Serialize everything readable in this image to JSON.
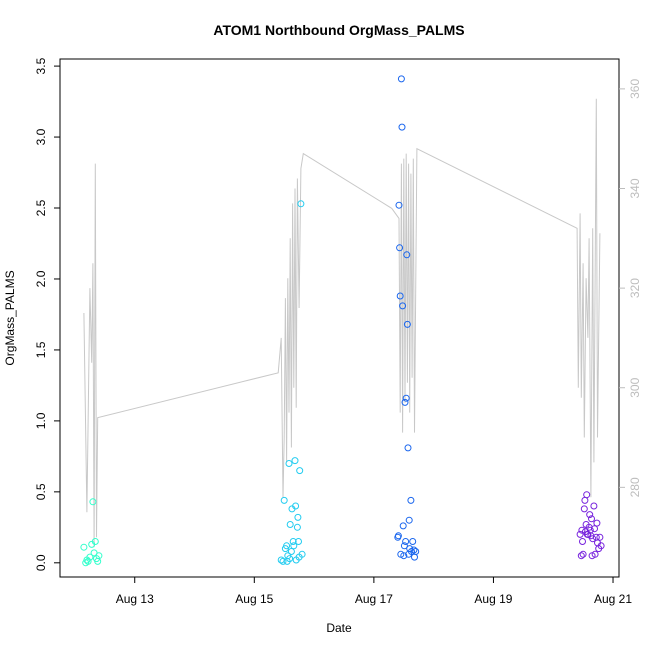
{
  "chart_data": {
    "type": "scatter",
    "title": "ATOM1 Northbound OrgMass_PALMS",
    "xlabel": "Date",
    "ylabel": "OrgMass_PALMS",
    "x_ticks": [
      "Aug 13",
      "Aug 15",
      "Aug 17",
      "Aug 19",
      "Aug 21"
    ],
    "x_tick_days": [
      13,
      15,
      17,
      19,
      21
    ],
    "xlim_days": [
      11.75,
      21.1
    ],
    "ylim": [
      -0.1,
      3.55
    ],
    "y_ticks": [
      "0.0",
      "0.5",
      "1.0",
      "1.5",
      "2.0",
      "2.5",
      "3.0",
      "3.5"
    ],
    "y_tick_values": [
      0,
      0.5,
      1.0,
      1.5,
      2.0,
      2.5,
      3.0,
      3.5
    ],
    "y2lim": [
      262,
      366
    ],
    "y2_ticks": [
      "280",
      "300",
      "320",
      "340",
      "360"
    ],
    "y2_tick_values": [
      280,
      300,
      320,
      340,
      360
    ],
    "grid": false,
    "legend": "none",
    "line_color": "#c8c8c8",
    "series": [
      {
        "color": "#33ffcc",
        "points": [
          [
            12.15,
            0.11
          ],
          [
            12.2,
            0.02
          ],
          [
            12.22,
            0.01
          ],
          [
            12.25,
            0.04
          ],
          [
            12.28,
            0.13
          ],
          [
            12.3,
            0.43
          ],
          [
            12.32,
            0.07
          ],
          [
            12.34,
            0.15
          ],
          [
            12.36,
            0.03
          ],
          [
            12.38,
            0.01
          ],
          [
            12.4,
            0.05
          ],
          [
            12.18,
            0.0
          ]
        ]
      },
      {
        "color": "#22ccf0",
        "points": [
          [
            15.45,
            0.02
          ],
          [
            15.48,
            0.01
          ],
          [
            15.5,
            0.44
          ],
          [
            15.52,
            0.1
          ],
          [
            15.54,
            0.12
          ],
          [
            15.56,
            0.05
          ],
          [
            15.58,
            0.7
          ],
          [
            15.6,
            0.27
          ],
          [
            15.62,
            0.08
          ],
          [
            15.63,
            0.38
          ],
          [
            15.65,
            0.15
          ],
          [
            15.66,
            0.12
          ],
          [
            15.68,
            0.72
          ],
          [
            15.69,
            0.4
          ],
          [
            15.7,
            0.02
          ],
          [
            15.72,
            0.25
          ],
          [
            15.73,
            0.32
          ],
          [
            15.74,
            0.15
          ],
          [
            15.75,
            0.04
          ],
          [
            15.76,
            0.65
          ],
          [
            15.78,
            2.53
          ],
          [
            15.8,
            0.06
          ],
          [
            15.55,
            0.01
          ],
          [
            15.59,
            0.03
          ]
        ]
      },
      {
        "color": "#1a66ee",
        "points": [
          [
            17.4,
            0.18
          ],
          [
            17.42,
            2.52
          ],
          [
            17.43,
            2.22
          ],
          [
            17.44,
            1.88
          ],
          [
            17.45,
            0.06
          ],
          [
            17.46,
            3.41
          ],
          [
            17.47,
            3.07
          ],
          [
            17.48,
            1.81
          ],
          [
            17.49,
            0.26
          ],
          [
            17.5,
            0.05
          ],
          [
            17.52,
            1.13
          ],
          [
            17.53,
            0.15
          ],
          [
            17.54,
            1.16
          ],
          [
            17.55,
            2.17
          ],
          [
            17.56,
            1.68
          ],
          [
            17.57,
            0.81
          ],
          [
            17.58,
            0.06
          ],
          [
            17.59,
            0.3
          ],
          [
            17.6,
            0.1
          ],
          [
            17.62,
            0.44
          ],
          [
            17.63,
            0.08
          ],
          [
            17.65,
            0.15
          ],
          [
            17.67,
            0.09
          ],
          [
            17.68,
            0.04
          ],
          [
            17.7,
            0.08
          ],
          [
            17.41,
            0.19
          ],
          [
            17.51,
            0.12
          ]
        ]
      },
      {
        "color": "#7722dd",
        "points": [
          [
            20.45,
            0.2
          ],
          [
            20.47,
            0.05
          ],
          [
            20.48,
            0.23
          ],
          [
            20.5,
            0.06
          ],
          [
            20.52,
            0.38
          ],
          [
            20.53,
            0.44
          ],
          [
            20.54,
            0.22
          ],
          [
            20.55,
            0.27
          ],
          [
            20.56,
            0.48
          ],
          [
            20.58,
            0.2
          ],
          [
            20.6,
            0.25
          ],
          [
            20.61,
            0.34
          ],
          [
            20.62,
            0.23
          ],
          [
            20.64,
            0.31
          ],
          [
            20.65,
            0.05
          ],
          [
            20.66,
            0.17
          ],
          [
            20.68,
            0.4
          ],
          [
            20.7,
            0.06
          ],
          [
            20.72,
            0.18
          ],
          [
            20.73,
            0.28
          ],
          [
            20.74,
            0.14
          ],
          [
            20.76,
            0.1
          ],
          [
            20.78,
            0.18
          ],
          [
            20.8,
            0.12
          ],
          [
            20.49,
            0.15
          ],
          [
            20.57,
            0.2
          ],
          [
            20.63,
            0.19
          ],
          [
            20.69,
            0.24
          ]
        ]
      }
    ],
    "line_series": {
      "axis": "right",
      "points": [
        [
          12.15,
          315
        ],
        [
          12.2,
          275
        ],
        [
          12.25,
          320
        ],
        [
          12.28,
          305
        ],
        [
          12.3,
          325
        ],
        [
          12.32,
          268
        ],
        [
          12.34,
          345
        ],
        [
          12.36,
          270
        ],
        [
          12.38,
          294
        ],
        [
          15.4,
          303
        ],
        [
          15.45,
          310
        ],
        [
          15.48,
          278
        ],
        [
          15.5,
          290
        ],
        [
          15.52,
          318
        ],
        [
          15.54,
          285
        ],
        [
          15.56,
          322
        ],
        [
          15.58,
          295
        ],
        [
          15.6,
          330
        ],
        [
          15.62,
          288
        ],
        [
          15.64,
          337
        ],
        [
          15.66,
          300
        ],
        [
          15.68,
          340
        ],
        [
          15.7,
          296
        ],
        [
          15.72,
          342
        ],
        [
          15.75,
          316
        ],
        [
          15.78,
          344
        ],
        [
          15.82,
          347
        ],
        [
          17.3,
          336
        ],
        [
          17.42,
          334
        ],
        [
          17.44,
          295
        ],
        [
          17.46,
          345
        ],
        [
          17.48,
          291
        ],
        [
          17.5,
          346
        ],
        [
          17.52,
          297
        ],
        [
          17.54,
          347
        ],
        [
          17.56,
          301
        ],
        [
          17.58,
          345
        ],
        [
          17.6,
          295
        ],
        [
          17.62,
          343
        ],
        [
          17.64,
          302
        ],
        [
          17.66,
          346
        ],
        [
          17.68,
          291
        ],
        [
          17.72,
          348
        ],
        [
          20.4,
          332
        ],
        [
          20.42,
          300
        ],
        [
          20.45,
          335
        ],
        [
          20.47,
          298
        ],
        [
          20.5,
          325
        ],
        [
          20.52,
          290
        ],
        [
          20.55,
          322
        ],
        [
          20.58,
          310
        ],
        [
          20.6,
          330
        ],
        [
          20.63,
          278
        ],
        [
          20.66,
          332
        ],
        [
          20.68,
          285
        ],
        [
          20.72,
          358
        ],
        [
          20.74,
          290
        ],
        [
          20.78,
          331
        ]
      ]
    }
  }
}
